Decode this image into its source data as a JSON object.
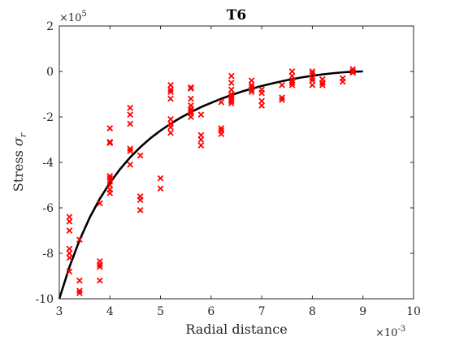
{
  "chart_data": {
    "type": "scatter",
    "title": "T6",
    "xlabel": "Radial distance",
    "ylabel_main": "Stress ",
    "ylabel_symbol": "σ",
    "ylabel_subscript": "r",
    "xlim": [
      3,
      10
    ],
    "ylim": [
      -10,
      2
    ],
    "x_ticks": [
      "3",
      "4",
      "5",
      "6",
      "7",
      "8",
      "9",
      "10"
    ],
    "y_ticks": [
      "-10",
      "-8",
      "-6",
      "-4",
      "-2",
      "0",
      "2"
    ],
    "x_multiplier_base": "×10",
    "x_multiplier_exp": "-3",
    "y_multiplier_base": "×10",
    "y_multiplier_exp": "5",
    "x_scale": 0.001,
    "y_scale": 100000,
    "grid": false,
    "colors": {
      "scatter": "#ff0000",
      "fit_line": "#000000",
      "axes": "#262626"
    },
    "series": [
      {
        "type": "scatter",
        "marker": "x",
        "points": [
          [
            3.2,
            -6.4
          ],
          [
            3.2,
            -6.6
          ],
          [
            3.2,
            -7.0
          ],
          [
            3.2,
            -7.8
          ],
          [
            3.2,
            -8.0
          ],
          [
            3.2,
            -8.2
          ],
          [
            3.2,
            -8.8
          ],
          [
            3.4,
            -7.4
          ],
          [
            3.4,
            -9.2
          ],
          [
            3.4,
            -9.65
          ],
          [
            3.4,
            -9.75
          ],
          [
            3.8,
            -5.8
          ],
          [
            3.8,
            -8.35
          ],
          [
            3.8,
            -8.5
          ],
          [
            3.8,
            -8.6
          ],
          [
            3.8,
            -9.2
          ],
          [
            4.0,
            -2.5
          ],
          [
            4.0,
            -3.1
          ],
          [
            4.0,
            -3.15
          ],
          [
            4.0,
            -4.6
          ],
          [
            4.0,
            -4.7
          ],
          [
            4.0,
            -4.8
          ],
          [
            4.0,
            -5.0
          ],
          [
            4.0,
            -5.2
          ],
          [
            4.0,
            -5.35
          ],
          [
            4.4,
            -1.6
          ],
          [
            4.4,
            -1.9
          ],
          [
            4.4,
            -2.3
          ],
          [
            4.4,
            -3.4
          ],
          [
            4.4,
            -3.5
          ],
          [
            4.4,
            -4.1
          ],
          [
            4.6,
            -3.7
          ],
          [
            4.6,
            -5.5
          ],
          [
            4.6,
            -5.65
          ],
          [
            4.6,
            -6.1
          ],
          [
            5.0,
            -4.7
          ],
          [
            5.0,
            -5.15
          ],
          [
            5.2,
            -0.6
          ],
          [
            5.2,
            -0.8
          ],
          [
            5.2,
            -0.9
          ],
          [
            5.2,
            -1.2
          ],
          [
            5.2,
            -2.1
          ],
          [
            5.2,
            -2.3
          ],
          [
            5.2,
            -2.45
          ],
          [
            5.2,
            -2.7
          ],
          [
            5.6,
            -0.7
          ],
          [
            5.6,
            -0.75
          ],
          [
            5.6,
            -1.2
          ],
          [
            5.6,
            -1.5
          ],
          [
            5.6,
            -1.65
          ],
          [
            5.6,
            -1.75
          ],
          [
            5.6,
            -1.85
          ],
          [
            5.6,
            -2.0
          ],
          [
            5.8,
            -1.9
          ],
          [
            5.8,
            -2.8
          ],
          [
            5.8,
            -3.0
          ],
          [
            5.8,
            -3.25
          ],
          [
            6.2,
            -1.35
          ],
          [
            6.2,
            -2.5
          ],
          [
            6.2,
            -2.6
          ],
          [
            6.2,
            -2.75
          ],
          [
            6.4,
            -0.2
          ],
          [
            6.4,
            -0.5
          ],
          [
            6.4,
            -0.8
          ],
          [
            6.4,
            -1.0
          ],
          [
            6.4,
            -1.1
          ],
          [
            6.4,
            -1.2
          ],
          [
            6.4,
            -1.3
          ],
          [
            6.4,
            -1.4
          ],
          [
            6.8,
            -0.4
          ],
          [
            6.8,
            -0.6
          ],
          [
            6.8,
            -0.7
          ],
          [
            6.8,
            -0.8
          ],
          [
            6.8,
            -0.9
          ],
          [
            7.0,
            -0.8
          ],
          [
            7.0,
            -0.95
          ],
          [
            7.0,
            -1.3
          ],
          [
            7.0,
            -1.5
          ],
          [
            7.4,
            -0.6
          ],
          [
            7.4,
            -1.15
          ],
          [
            7.4,
            -1.25
          ],
          [
            7.6,
            0.0
          ],
          [
            7.6,
            -0.2
          ],
          [
            7.6,
            -0.4
          ],
          [
            7.6,
            -0.5
          ],
          [
            7.6,
            -0.6
          ],
          [
            8.0,
            0.0
          ],
          [
            8.0,
            -0.1
          ],
          [
            8.0,
            -0.3
          ],
          [
            8.0,
            -0.4
          ],
          [
            8.0,
            -0.6
          ],
          [
            8.2,
            -0.35
          ],
          [
            8.2,
            -0.5
          ],
          [
            8.2,
            -0.6
          ],
          [
            8.6,
            -0.3
          ],
          [
            8.6,
            -0.45
          ],
          [
            8.8,
            0.1
          ],
          [
            8.8,
            0.0
          ],
          [
            8.8,
            -0.05
          ]
        ]
      },
      {
        "type": "line",
        "description": "smooth fitted curve",
        "x": [
          3.0,
          3.2,
          3.4,
          3.6,
          3.8,
          4.0,
          4.2,
          4.4,
          4.6,
          4.8,
          5.0,
          5.2,
          5.4,
          5.6,
          5.8,
          6.0,
          6.2,
          6.4,
          6.6,
          6.8,
          7.0,
          7.2,
          7.4,
          7.6,
          7.8,
          8.0,
          8.2,
          8.4,
          8.6,
          8.8,
          9.0
        ],
        "y": [
          -10.0,
          -8.6,
          -7.42,
          -6.43,
          -5.6,
          -4.9,
          -4.3,
          -3.78,
          -3.33,
          -2.94,
          -2.6,
          -2.3,
          -2.03,
          -1.79,
          -1.57,
          -1.38,
          -1.2,
          -1.04,
          -0.89,
          -0.76,
          -0.64,
          -0.53,
          -0.43,
          -0.34,
          -0.26,
          -0.19,
          -0.13,
          -0.08,
          -0.04,
          -0.01,
          0.0
        ]
      }
    ]
  }
}
